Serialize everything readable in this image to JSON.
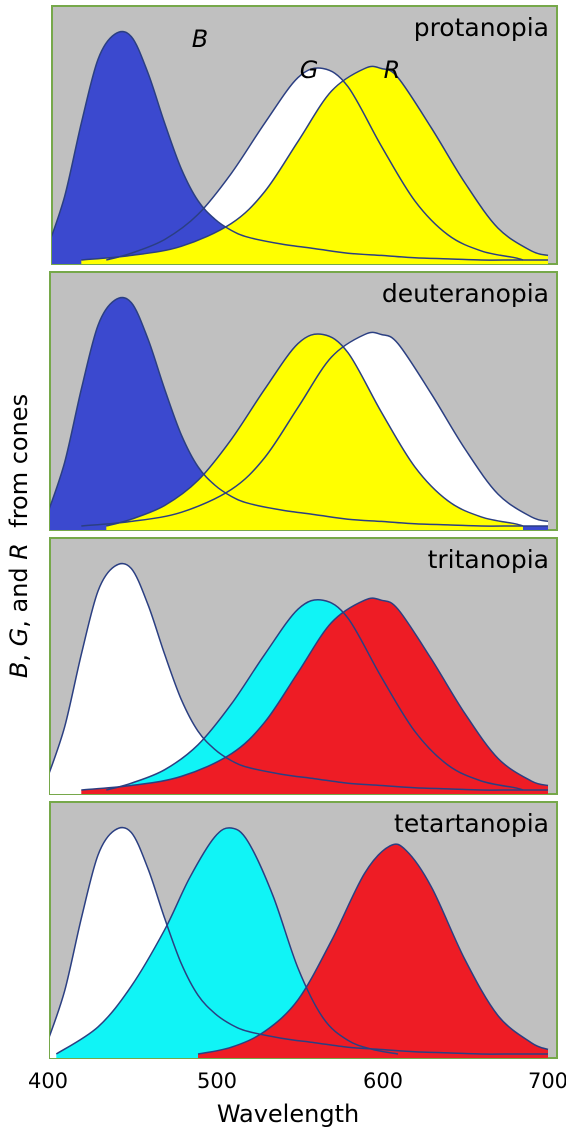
{
  "chart_data": {
    "type": "area",
    "xlabel": "Wavelength",
    "ylabel": {
      "parts": [
        {
          "text": "B",
          "italic": true
        },
        {
          "text": ", ",
          "italic": false
        },
        {
          "text": "G",
          "italic": true
        },
        {
          "text": ", and ",
          "italic": false
        },
        {
          "text": "R",
          "italic": true
        },
        {
          "text": "  from cones",
          "italic": false
        }
      ]
    },
    "xlim": [
      400,
      700
    ],
    "ylim": [
      0,
      1
    ],
    "xticks": [
      "400",
      "500",
      "600",
      "700"
    ],
    "grid": false,
    "curve_labels": {
      "B": "B",
      "G": "G",
      "R": "R"
    },
    "panels": [
      {
        "title": "protanopia",
        "show_curve_labels": true,
        "curves": [
          {
            "name": "B",
            "x": [
              400,
              410,
              420,
              430,
              440,
              450,
              460,
              470,
              480,
              490,
              500,
              510,
              520,
              540,
              560,
              580,
              600,
              620,
              640,
              660,
              680,
              700
            ],
            "y": [
              0.06,
              0.28,
              0.6,
              0.88,
              0.99,
              0.98,
              0.82,
              0.6,
              0.4,
              0.26,
              0.18,
              0.13,
              0.1,
              0.07,
              0.05,
              0.03,
              0.02,
              0.01,
              0.005,
              0.0,
              0.0,
              0.0
            ]
          },
          {
            "name": "G",
            "x": [
              435,
              450,
              470,
              490,
              510,
              530,
              550,
              565,
              580,
              600,
              620,
              640,
              660,
              680,
              685
            ],
            "y": [
              0.0,
              0.03,
              0.09,
              0.2,
              0.38,
              0.6,
              0.8,
              0.84,
              0.76,
              0.5,
              0.26,
              0.11,
              0.04,
              0.01,
              0.0
            ]
          },
          {
            "name": "R",
            "x": [
              420,
              450,
              480,
              510,
              530,
              550,
              570,
              590,
              600,
              610,
              630,
              650,
              670,
              690,
              700
            ],
            "y": [
              0.0,
              0.02,
              0.06,
              0.16,
              0.3,
              0.52,
              0.74,
              0.84,
              0.84,
              0.8,
              0.58,
              0.34,
              0.14,
              0.04,
              0.02
            ]
          }
        ],
        "fills": [
          {
            "between": [
              "B",
              "baseline"
            ],
            "color": "#3b49cf"
          },
          {
            "between": [
              "R",
              "baseline"
            ],
            "color": "#ffff00"
          }
        ]
      },
      {
        "title": "deuteranopia",
        "show_curve_labels": false,
        "curves": [
          {
            "name": "B",
            "x": [
              400,
              410,
              420,
              430,
              440,
              450,
              460,
              470,
              480,
              490,
              500,
              510,
              520,
              540,
              560,
              580,
              600,
              620,
              640,
              660,
              680,
              700
            ],
            "y": [
              0.06,
              0.28,
              0.6,
              0.88,
              0.99,
              0.98,
              0.82,
              0.6,
              0.4,
              0.26,
              0.18,
              0.13,
              0.1,
              0.07,
              0.05,
              0.03,
              0.02,
              0.01,
              0.005,
              0.0,
              0.0,
              0.0
            ]
          },
          {
            "name": "G",
            "x": [
              435,
              450,
              470,
              490,
              510,
              530,
              550,
              565,
              580,
              600,
              620,
              640,
              660,
              680,
              685
            ],
            "y": [
              0.0,
              0.03,
              0.09,
              0.2,
              0.38,
              0.6,
              0.8,
              0.84,
              0.76,
              0.5,
              0.26,
              0.11,
              0.04,
              0.01,
              0.0
            ]
          },
          {
            "name": "R",
            "x": [
              420,
              450,
              480,
              510,
              530,
              550,
              570,
              590,
              600,
              610,
              630,
              650,
              670,
              690,
              700
            ],
            "y": [
              0.0,
              0.02,
              0.06,
              0.16,
              0.3,
              0.52,
              0.74,
              0.84,
              0.84,
              0.8,
              0.58,
              0.34,
              0.14,
              0.04,
              0.02
            ]
          }
        ],
        "fills": [
          {
            "between": [
              "B",
              "baseline"
            ],
            "color": "#3b49cf"
          },
          {
            "between": [
              "G",
              "baseline"
            ],
            "color": "#ffff00"
          }
        ]
      },
      {
        "title": "tritanopia",
        "show_curve_labels": false,
        "curves": [
          {
            "name": "B",
            "x": [
              400,
              410,
              420,
              430,
              440,
              450,
              460,
              470,
              480,
              490,
              500,
              510,
              520,
              540,
              560,
              580,
              600,
              620,
              640,
              660,
              680,
              700
            ],
            "y": [
              0.06,
              0.28,
              0.6,
              0.88,
              0.99,
              0.98,
              0.82,
              0.6,
              0.4,
              0.26,
              0.18,
              0.13,
              0.1,
              0.07,
              0.05,
              0.03,
              0.02,
              0.01,
              0.005,
              0.0,
              0.0,
              0.0
            ]
          },
          {
            "name": "G",
            "x": [
              435,
              450,
              470,
              490,
              510,
              530,
              550,
              565,
              580,
              600,
              620,
              640,
              660,
              680,
              685
            ],
            "y": [
              0.0,
              0.03,
              0.09,
              0.2,
              0.38,
              0.6,
              0.8,
              0.84,
              0.76,
              0.5,
              0.26,
              0.11,
              0.04,
              0.01,
              0.0
            ]
          },
          {
            "name": "R",
            "x": [
              420,
              450,
              480,
              510,
              530,
              550,
              570,
              590,
              600,
              610,
              630,
              650,
              670,
              690,
              700
            ],
            "y": [
              0.0,
              0.02,
              0.06,
              0.16,
              0.3,
              0.52,
              0.74,
              0.84,
              0.84,
              0.8,
              0.58,
              0.34,
              0.14,
              0.04,
              0.02
            ]
          }
        ],
        "fills": [
          {
            "between": [
              "G",
              "baseline"
            ],
            "color": "#10f4f6"
          },
          {
            "between": [
              "R",
              "baseline"
            ],
            "color": "#ee1c25"
          }
        ]
      },
      {
        "title": "tetartanopia",
        "show_curve_labels": false,
        "curves": [
          {
            "name": "B",
            "x": [
              400,
              410,
              420,
              430,
              440,
              450,
              460,
              470,
              480,
              490,
              500,
              510,
              520,
              540,
              560,
              580,
              600,
              620,
              640,
              660,
              680,
              700
            ],
            "y": [
              0.06,
              0.28,
              0.6,
              0.88,
              0.99,
              0.98,
              0.82,
              0.6,
              0.4,
              0.26,
              0.18,
              0.13,
              0.1,
              0.07,
              0.05,
              0.03,
              0.02,
              0.01,
              0.005,
              0.0,
              0.0,
              0.0
            ]
          },
          {
            "name": "G",
            "x": [
              405,
              430,
              450,
              470,
              485,
              500,
              510,
              520,
              535,
              550,
              565,
              580,
              595,
              610
            ],
            "y": [
              0.0,
              0.12,
              0.3,
              0.55,
              0.78,
              0.96,
              1.0,
              0.94,
              0.7,
              0.38,
              0.16,
              0.06,
              0.02,
              0.0
            ]
          },
          {
            "name": "R",
            "x": [
              490,
              510,
              530,
              550,
              570,
              590,
              605,
              615,
              630,
              650,
              670,
              690,
              700
            ],
            "y": [
              0.0,
              0.03,
              0.1,
              0.24,
              0.5,
              0.8,
              0.92,
              0.9,
              0.74,
              0.42,
              0.17,
              0.05,
              0.02
            ]
          }
        ],
        "fills": [
          {
            "between": [
              "G",
              "baseline"
            ],
            "color": "#10f4f6"
          },
          {
            "between": [
              "R",
              "baseline"
            ],
            "color": "#ee1c25"
          }
        ]
      }
    ]
  }
}
